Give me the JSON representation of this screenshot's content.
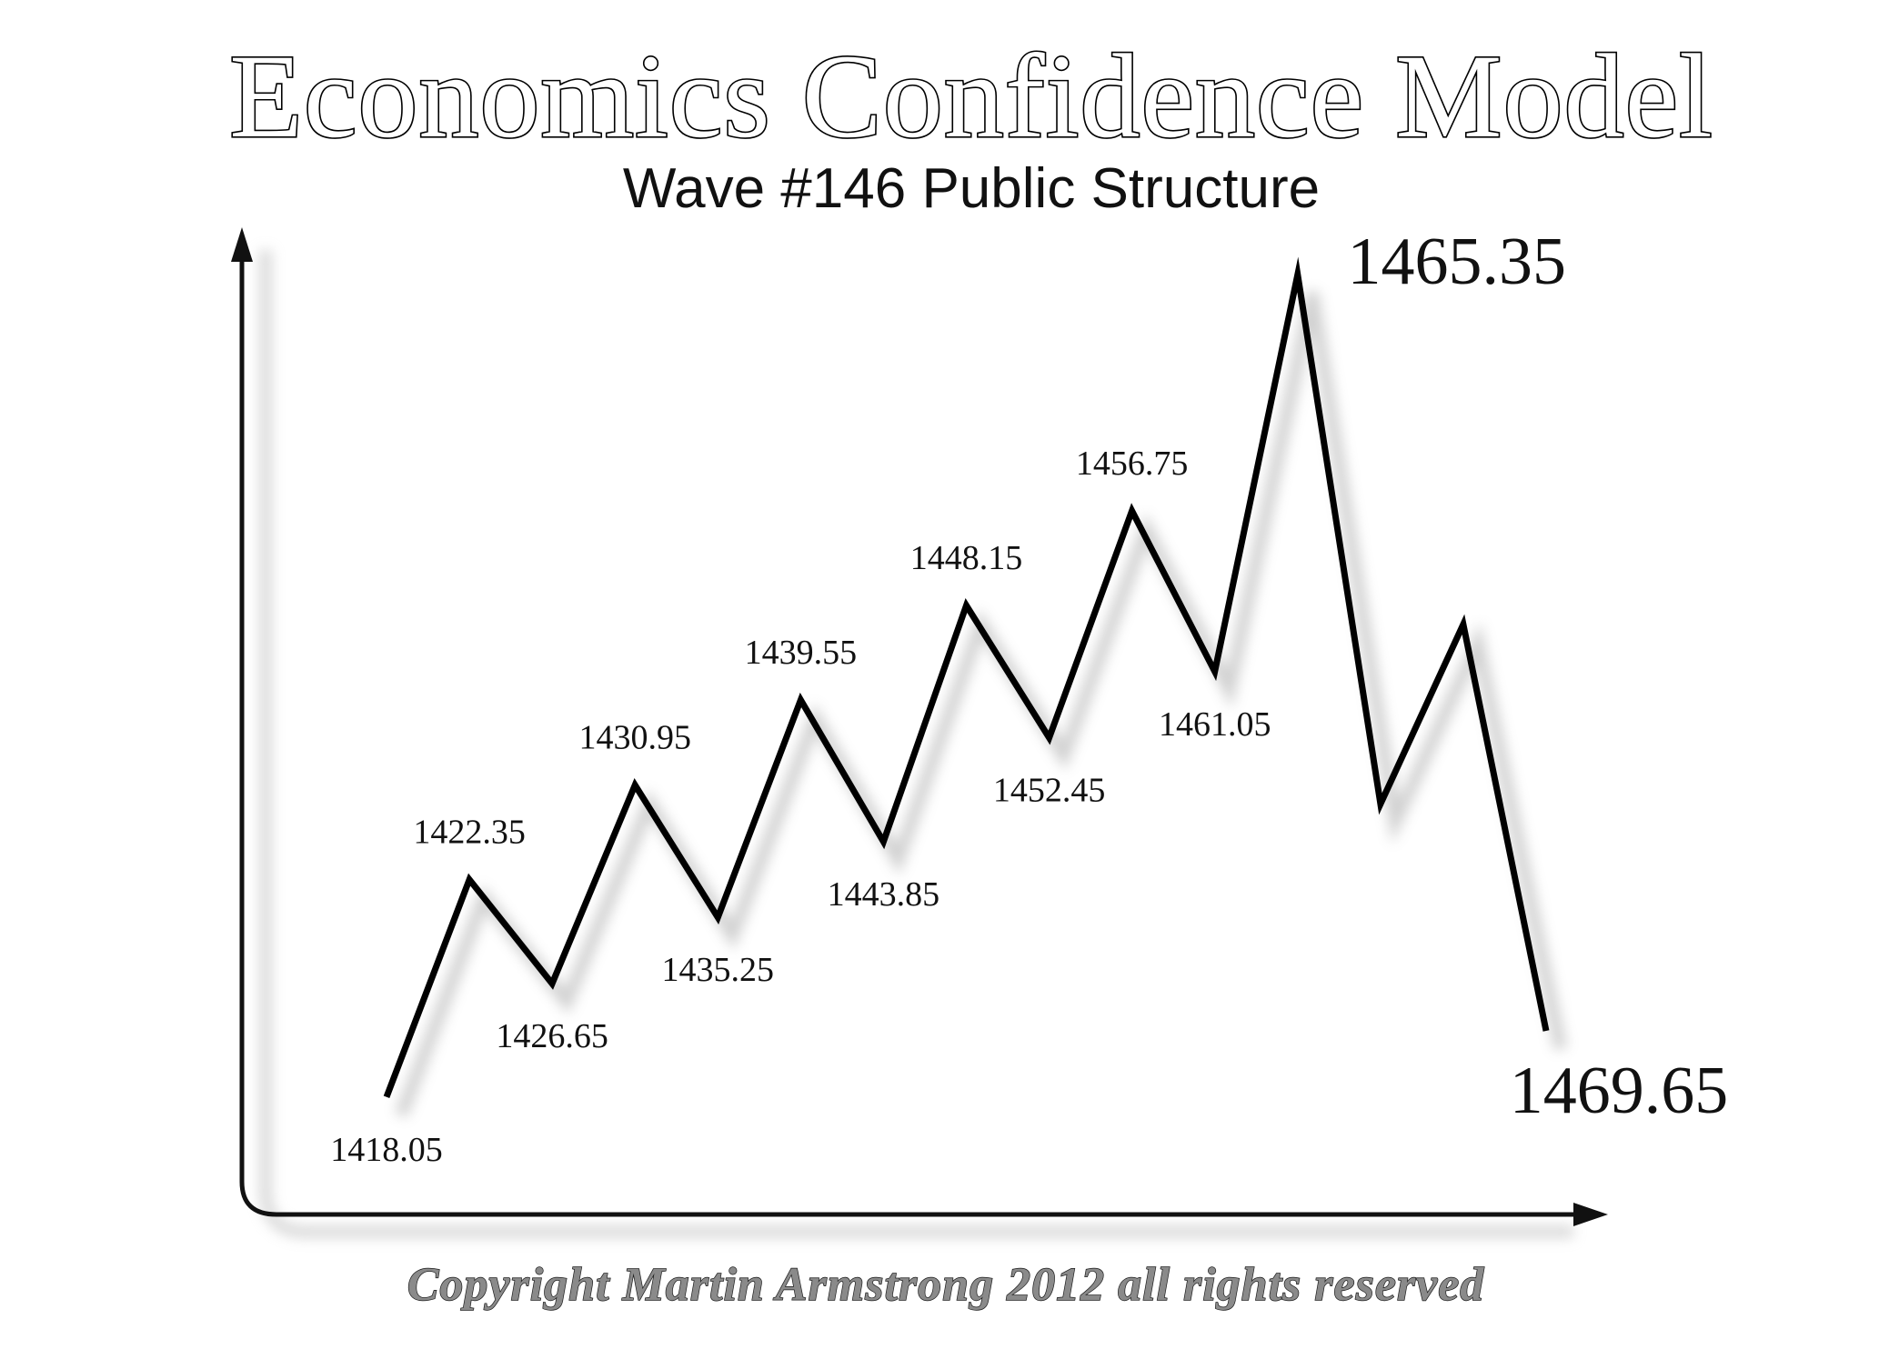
{
  "chart_data": {
    "type": "line",
    "title": "Economics Confidence Model",
    "subtitle": "Wave #146 Public Structure",
    "xlabel": "",
    "ylabel": "",
    "grid": false,
    "legend": "none",
    "series": [
      {
        "x": [
          "1418.05",
          "1422.35",
          "1426.65",
          "1430.95",
          "1435.25",
          "1439.55",
          "1443.85",
          "1448.15",
          "1452.45",
          "1456.75",
          "1461.05",
          "1465.35",
          "",
          "",
          "1469.65"
        ],
        "values": [
          1418.05,
          1422.35,
          1426.65,
          1430.95,
          1435.25,
          1439.55,
          1443.85,
          1448.15,
          1452.45,
          1456.75,
          1461.05,
          1465.35,
          null,
          null,
          1469.65
        ]
      }
    ],
    "point_labels": [
      "1418.05",
      "1422.35",
      "1426.65",
      "1430.95",
      "1435.25",
      "1439.55",
      "1443.85",
      "1448.15",
      "1452.45",
      "1456.75",
      "1461.05",
      "1465.35",
      "1469.65"
    ],
    "relative_levels": [
      0.08,
      0.31,
      0.2,
      0.41,
      0.27,
      0.5,
      0.35,
      0.6,
      0.46,
      0.7,
      0.53,
      0.95,
      0.39,
      0.58,
      0.15
    ],
    "line_color": "#000000",
    "axis_color": "#111111"
  },
  "footer": {
    "copyright": "Copyright Martin Armstrong 2012 all rights reserved"
  }
}
